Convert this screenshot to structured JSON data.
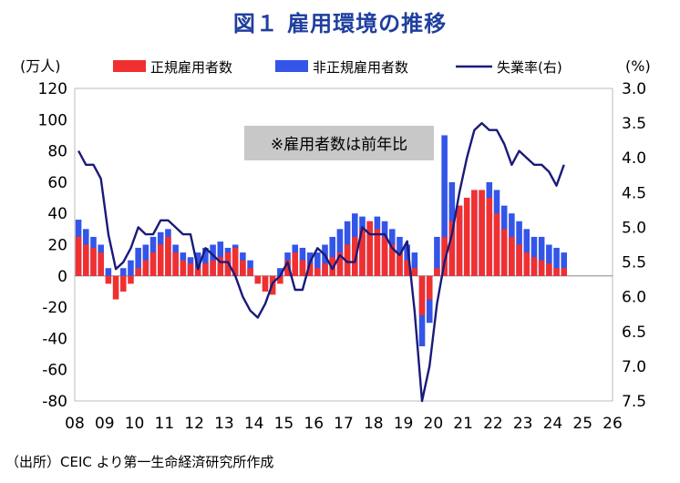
{
  "chart_data": {
    "type": "bar+line",
    "title": "図１ 雇用環境の推移",
    "left_unit": "(万人)",
    "right_unit": "(%)",
    "annotation": "※雇用者数は前年比",
    "source": "（出所）CEIC より第一生命経済研究所作成",
    "x_tick_labels": [
      "08",
      "09",
      "10",
      "11",
      "12",
      "13",
      "14",
      "15",
      "16",
      "17",
      "18",
      "19",
      "20",
      "21",
      "22",
      "23",
      "24",
      "25",
      "26"
    ],
    "x_start_year": 2008,
    "y_left": {
      "min": -80,
      "max": 120,
      "step": 20,
      "ticks": [
        "120",
        "100",
        "80",
        "60",
        "40",
        "20",
        "0",
        "-20",
        "-40",
        "-60",
        "-80"
      ]
    },
    "y_right": {
      "min": 3.0,
      "max": 7.5,
      "inverted": true,
      "ticks": [
        "3.0",
        "3.5",
        "4.0",
        "4.5",
        "5.0",
        "5.5",
        "6.0",
        "6.5",
        "7.0",
        "7.5"
      ]
    },
    "legend": [
      {
        "key": "regular",
        "label": "正規雇用者数"
      },
      {
        "key": "nonregular",
        "label": "非正規雇用者数"
      },
      {
        "key": "unemployment",
        "label": "失業率(右)"
      }
    ],
    "colors": {
      "regular": "#F03030",
      "nonregular": "#3355E8",
      "unemployment": "#1A1A7A",
      "axis": "#BBBBBB",
      "title": "#1F3FA0",
      "annotation_bg": "#C8C8C8"
    },
    "series_sampling": "quarterly, starting 2008 Q1",
    "series": [
      {
        "name": "正規雇用者数",
        "key": "regular",
        "axis": "left",
        "values": [
          25,
          20,
          18,
          15,
          -5,
          -15,
          -10,
          -5,
          5,
          10,
          15,
          20,
          25,
          15,
          10,
          8,
          5,
          8,
          10,
          12,
          15,
          18,
          10,
          5,
          -5,
          -10,
          -12,
          -5,
          10,
          15,
          10,
          8,
          5,
          8,
          12,
          15,
          20,
          25,
          30,
          35,
          30,
          25,
          20,
          15,
          10,
          5,
          -25,
          -15,
          5,
          25,
          35,
          45,
          50,
          55,
          55,
          50,
          40,
          30,
          25,
          20,
          15,
          12,
          10,
          8,
          5,
          5
        ]
      },
      {
        "name": "非正規雇用者数",
        "key": "nonregular",
        "axis": "left",
        "values": [
          36,
          30,
          25,
          20,
          5,
          0,
          5,
          10,
          18,
          20,
          25,
          28,
          30,
          20,
          15,
          12,
          15,
          18,
          20,
          22,
          18,
          20,
          15,
          10,
          0,
          -5,
          0,
          5,
          15,
          20,
          18,
          15,
          15,
          20,
          25,
          30,
          35,
          40,
          38,
          35,
          38,
          35,
          30,
          25,
          20,
          15,
          -45,
          -30,
          25,
          90,
          60,
          45,
          50,
          55,
          55,
          60,
          55,
          45,
          40,
          35,
          30,
          25,
          25,
          20,
          18,
          15
        ]
      },
      {
        "name": "失業率(右)",
        "key": "unemployment",
        "axis": "right",
        "values": [
          3.9,
          4.1,
          4.1,
          4.3,
          5.1,
          5.6,
          5.5,
          5.3,
          5.0,
          5.1,
          5.1,
          4.9,
          4.9,
          5.0,
          5.1,
          5.1,
          5.6,
          5.3,
          5.4,
          5.5,
          5.5,
          5.7,
          6.0,
          6.2,
          6.3,
          6.1,
          5.8,
          5.7,
          5.5,
          5.9,
          5.9,
          5.5,
          5.3,
          5.4,
          5.6,
          5.4,
          5.5,
          5.5,
          5.0,
          5.1,
          5.1,
          5.1,
          5.3,
          5.4,
          5.2,
          6.2,
          7.6,
          7.0,
          6.1,
          5.5,
          5.1,
          4.5,
          4.0,
          3.6,
          3.5,
          3.6,
          3.6,
          3.8,
          4.1,
          3.9,
          4.0,
          4.1,
          4.1,
          4.2,
          4.4,
          4.1
        ]
      }
    ]
  }
}
